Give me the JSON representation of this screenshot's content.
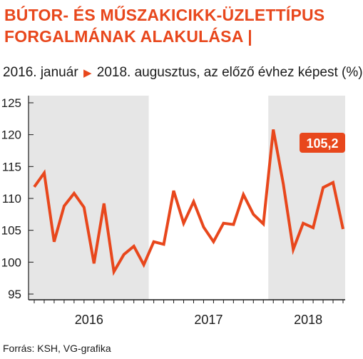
{
  "title_line1": "BÚTOR- ÉS MŰSZAKICIKK-ÜZLETTÍPUS",
  "title_line2": "FORGALMÁNAK ALAKULÁSA |",
  "subtitle_start": "2016. január",
  "subtitle_end": "2018. augusztus, az előző évhez képest (%)",
  "source": "Forrás: KSH, VG-grafika",
  "colors": {
    "line": "#e8471c",
    "shade": "#e6e6e6",
    "axis": "#1a1a1a",
    "grid": "#bfbfbf"
  },
  "chart_data": {
    "type": "line",
    "ylim": [
      95,
      125
    ],
    "yticks": [
      "95",
      "100",
      "105",
      "110",
      "115",
      "120",
      "125"
    ],
    "year_labels": [
      {
        "label": "2016",
        "start": 1,
        "end": 12
      },
      {
        "label": "2017",
        "start": 13,
        "end": 24
      },
      {
        "label": "2018",
        "start": 25,
        "end": 32
      }
    ],
    "shaded_years": [
      "2016",
      "2018"
    ],
    "callout": {
      "label": "105,2",
      "month": 32
    },
    "series": [
      {
        "values": [
          111.8,
          114.0,
          103.2,
          108.8,
          110.8,
          108.6,
          99.8,
          109.2,
          98.5,
          101.2,
          102.5,
          99.6,
          103.2,
          102.8,
          111.2,
          106.1,
          109.5,
          105.5,
          103.2,
          106.1,
          105.9,
          110.6,
          107.5,
          106.0,
          120.8,
          112.3,
          102.0,
          106.1,
          105.4,
          111.7,
          112.5,
          105.2
        ]
      }
    ]
  }
}
